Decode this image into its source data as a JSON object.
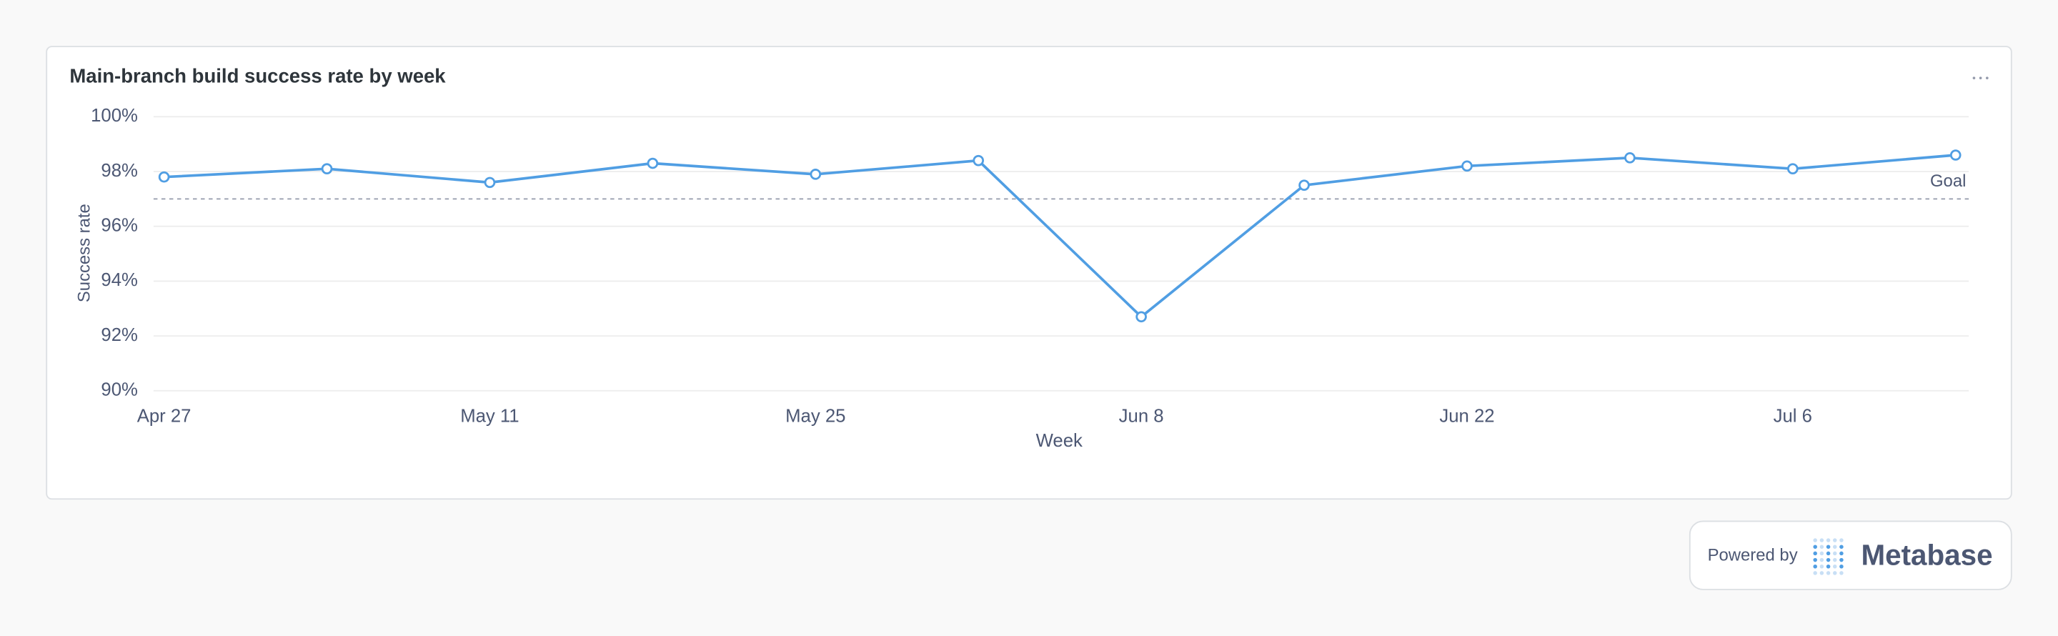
{
  "chart_data": {
    "type": "line",
    "title": "Main-branch build success rate by week",
    "x_label": "Week",
    "y_label": "Success rate",
    "categories": [
      "Apr 27",
      null,
      "May 11",
      null,
      "May 25",
      null,
      "Jun 8",
      null,
      "Jun 22",
      null,
      "Jul 6",
      null
    ],
    "series": [
      {
        "name": "Success rate",
        "color": "#509ee3",
        "values": [
          97.8,
          98.1,
          97.6,
          98.3,
          97.9,
          98.4,
          92.7,
          97.5,
          98.2,
          98.5,
          98.1,
          98.6
        ]
      }
    ],
    "ylim": [
      90,
      100
    ],
    "yticks": [
      {
        "value": 90,
        "label": "90%"
      },
      {
        "value": 92,
        "label": "92%"
      },
      {
        "value": 94,
        "label": "94%"
      },
      {
        "value": 96,
        "label": "96%"
      },
      {
        "value": 98,
        "label": "98%"
      },
      {
        "value": 100,
        "label": "100%"
      }
    ],
    "grid": true,
    "goal": {
      "value": 97,
      "label": "Goal"
    }
  },
  "footer": {
    "powered_by": "Powered by",
    "brand": "Metabase"
  }
}
